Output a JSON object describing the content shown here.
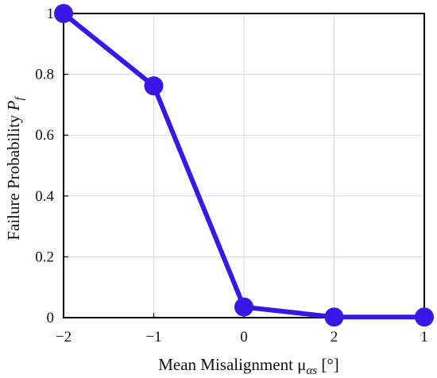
{
  "chart_data": {
    "type": "line",
    "categories": [
      "−2",
      "−1",
      "0",
      "2",
      "1"
    ],
    "series": [
      {
        "values": [
          1.0,
          0.762,
          0.035,
          0.002,
          0.002
        ]
      }
    ],
    "ylim": [
      0,
      1
    ],
    "yticks": [
      "0",
      "0.2",
      "0.4",
      "0.6",
      "0.8",
      "1"
    ],
    "xlabel": "Mean Misalignment μ",
    "xlabel_sub": "αs",
    "xlabel_suffix": " [°]",
    "ylabel": "Failure Probability ",
    "ylabel_sym": "P",
    "ylabel_sub": "f",
    "grid": true,
    "line_color": "#3a17e6",
    "marker_color": "#3a17e6"
  }
}
